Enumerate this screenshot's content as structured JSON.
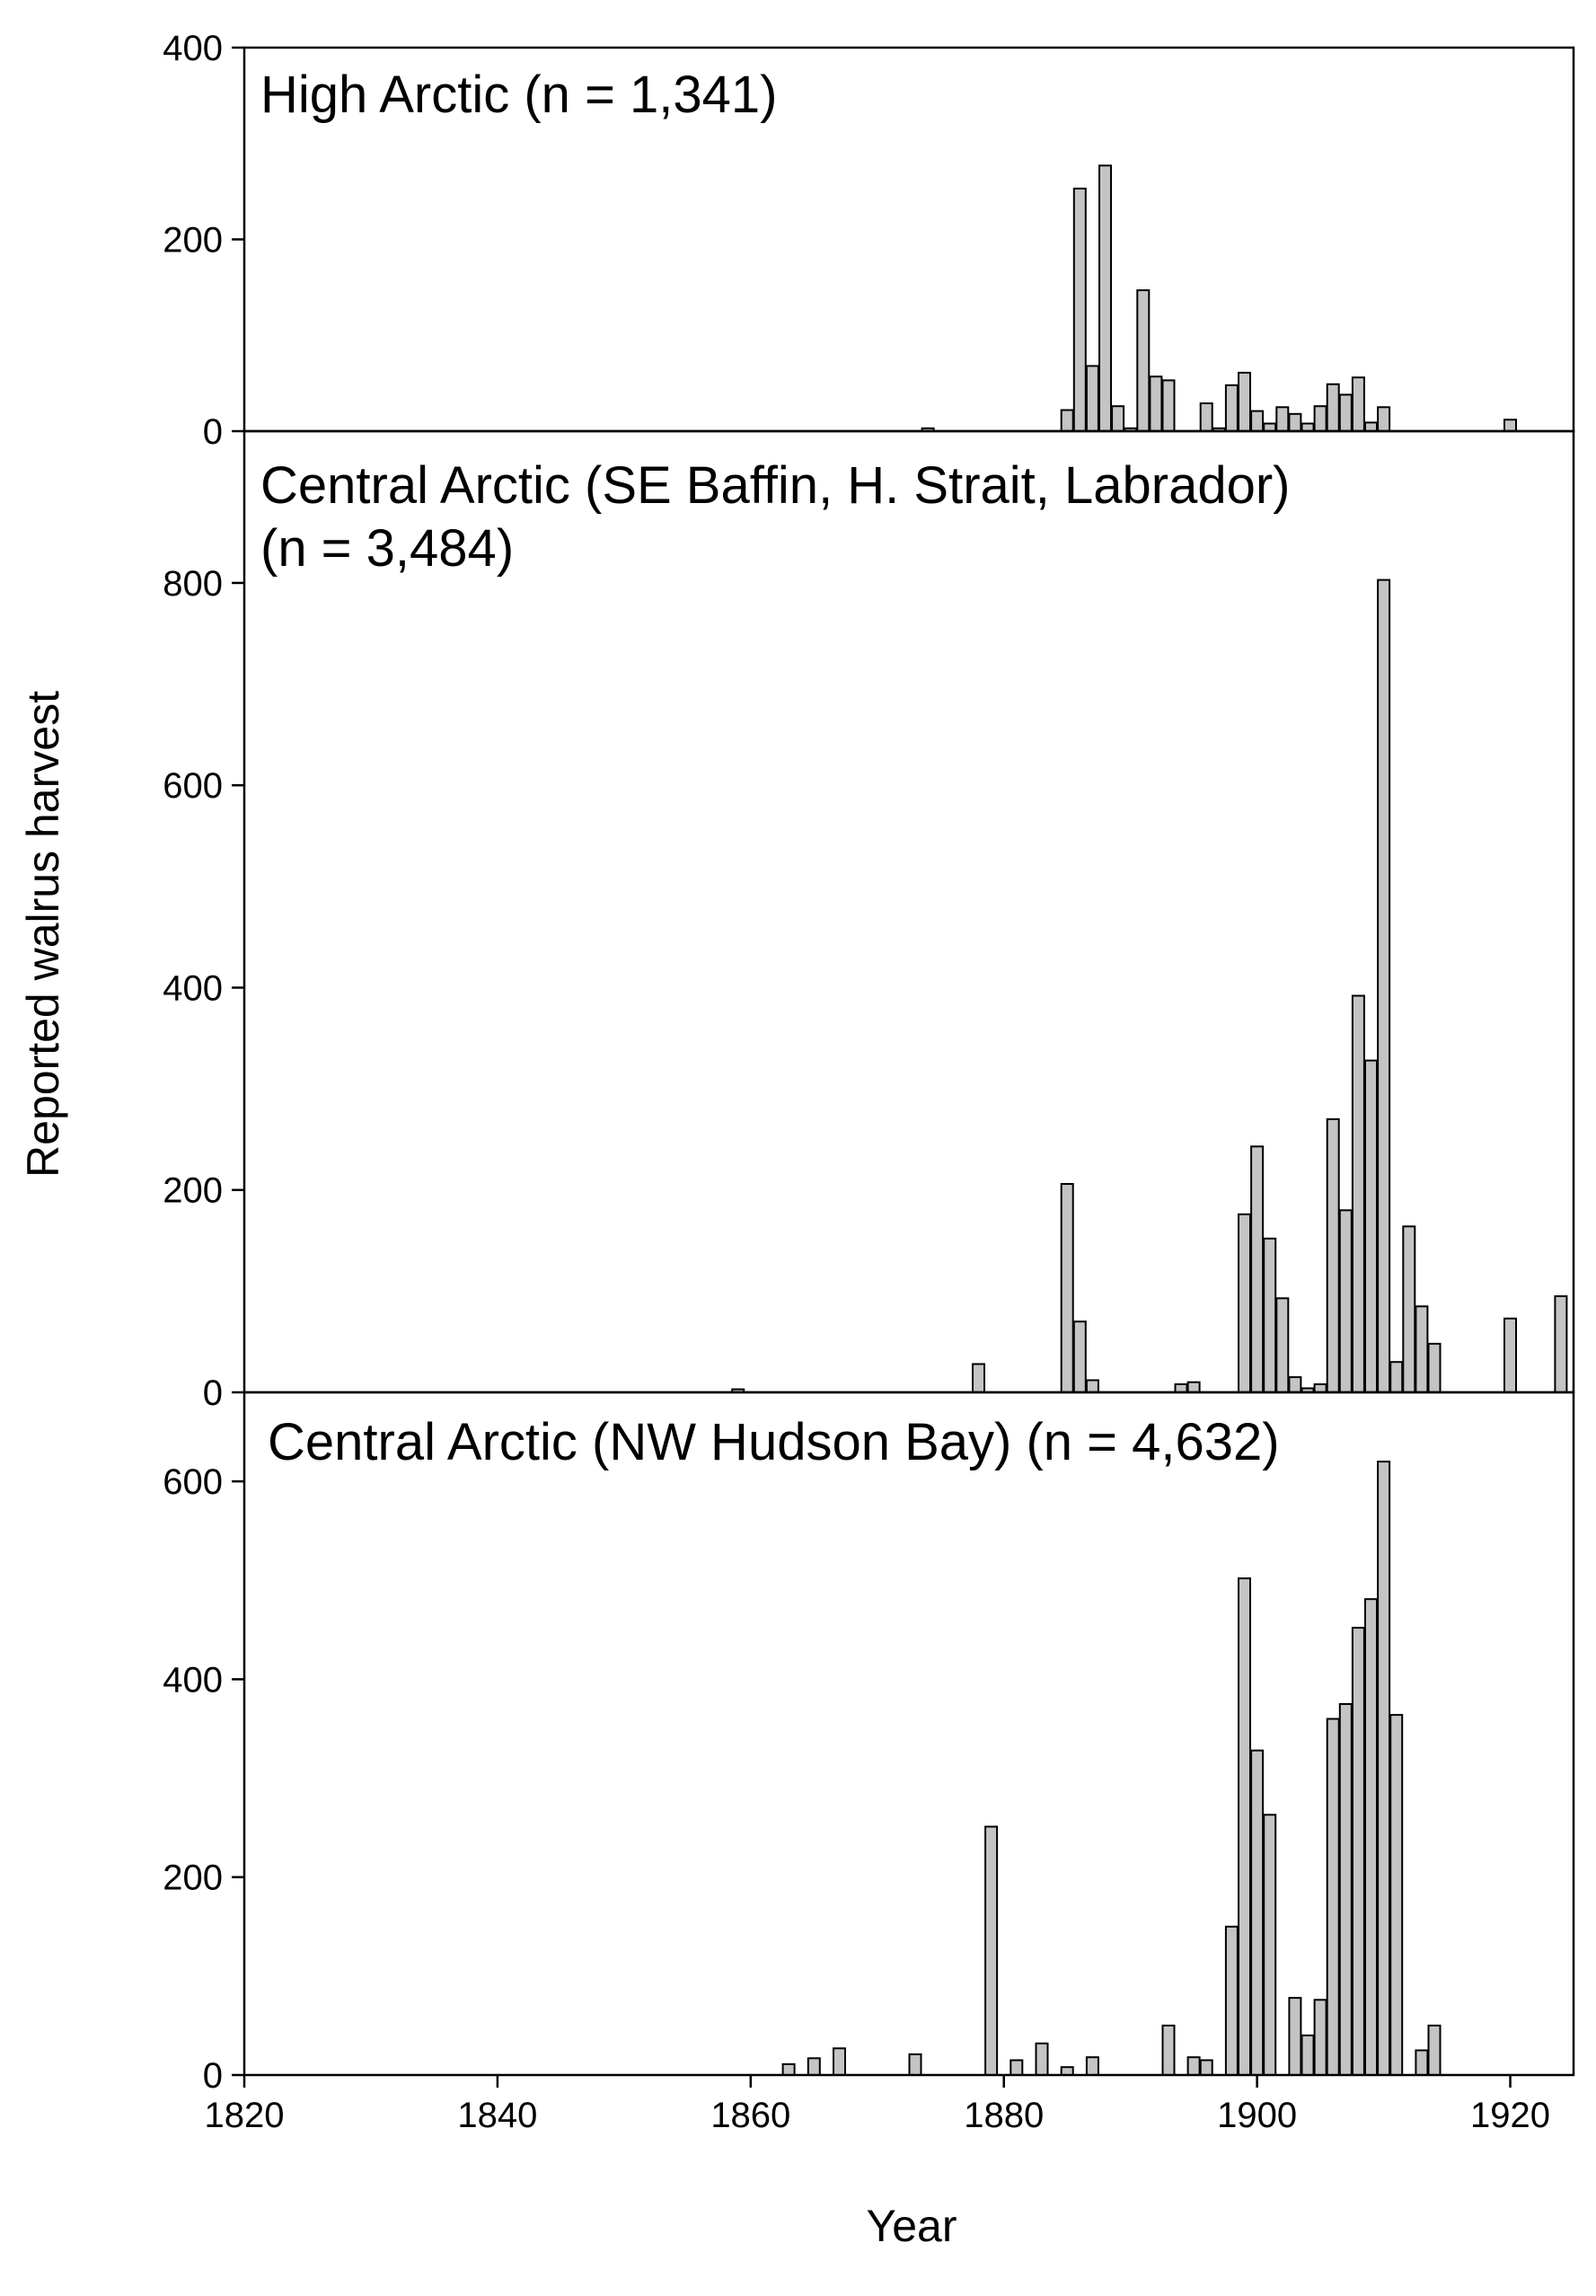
{
  "chart_data": {
    "type": "bar",
    "xlabel": "Year",
    "ylabel": "Reported walrus harvest",
    "xlim": [
      1820,
      1925
    ],
    "xticks": [
      1820,
      1840,
      1860,
      1880,
      1900,
      1920
    ],
    "shared_x_axis": true,
    "panels": [
      {
        "title_lines": [
          "High Arctic (n = 1,341)"
        ],
        "ylim": [
          0,
          400
        ],
        "yticks": [
          0,
          200,
          400
        ],
        "x": [
          1874,
          1885,
          1886,
          1887,
          1888,
          1889,
          1890,
          1891,
          1892,
          1893,
          1896,
          1897,
          1898,
          1899,
          1900,
          1901,
          1902,
          1903,
          1904,
          1905,
          1906,
          1907,
          1908,
          1909,
          1910,
          1920
        ],
        "values": [
          3,
          22,
          253,
          68,
          277,
          26,
          3,
          147,
          57,
          53,
          29,
          3,
          48,
          61,
          21,
          8,
          25,
          18,
          8,
          26,
          49,
          38,
          56,
          9,
          25,
          12
        ]
      },
      {
        "title_lines": [
          "Central Arctic (SE Baffin, H. Strait, Labrador)",
          "(n = 3,484)"
        ],
        "ylim": [
          0,
          950
        ],
        "yticks": [
          0,
          200,
          400,
          600,
          800
        ],
        "x": [
          1859,
          1878,
          1885,
          1886,
          1887,
          1894,
          1895,
          1899,
          1900,
          1901,
          1902,
          1903,
          1904,
          1905,
          1906,
          1907,
          1908,
          1909,
          1910,
          1911,
          1912,
          1913,
          1914,
          1920,
          1924
        ],
        "values": [
          3,
          28,
          206,
          70,
          12,
          8,
          10,
          176,
          243,
          152,
          93,
          15,
          4,
          8,
          270,
          180,
          392,
          328,
          803,
          30,
          164,
          85,
          48,
          73,
          95
        ]
      },
      {
        "title_lines": [
          "Central Arctic (NW Hudson Bay) (n = 4,632)"
        ],
        "ylim": [
          0,
          690
        ],
        "yticks": [
          0,
          200,
          400,
          600
        ],
        "x": [
          1863,
          1865,
          1867,
          1873,
          1879,
          1881,
          1883,
          1885,
          1887,
          1893,
          1895,
          1896,
          1898,
          1899,
          1900,
          1901,
          1903,
          1904,
          1905,
          1906,
          1907,
          1908,
          1909,
          1910,
          1911,
          1913,
          1914
        ],
        "values": [
          11,
          17,
          27,
          21,
          251,
          15,
          32,
          8,
          18,
          50,
          18,
          15,
          150,
          502,
          328,
          263,
          78,
          40,
          76,
          360,
          375,
          452,
          481,
          620,
          364,
          25,
          50
        ]
      }
    ]
  }
}
